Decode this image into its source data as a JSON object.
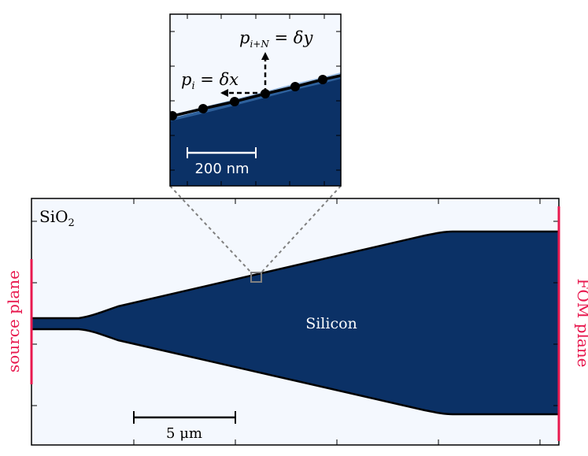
{
  "colors": {
    "background": "#f4f8fe",
    "silicon": "#0b3166",
    "outline": "#000000",
    "plane": "#e8194f",
    "zoom_box": "#808080"
  },
  "labels": {
    "cladding": "SiO",
    "cladding_sub": "2",
    "core": "Silicon",
    "source_plane": "source plane",
    "fom_plane": "FOM plane",
    "scale_main": "5 μm",
    "scale_inset": "200 nm",
    "param_x_lhs": "p",
    "param_x_sub": "i",
    "param_x_rhs": " = δx",
    "param_y_lhs": "p",
    "param_y_sub": "i+N",
    "param_y_rhs": " = δy"
  }
}
